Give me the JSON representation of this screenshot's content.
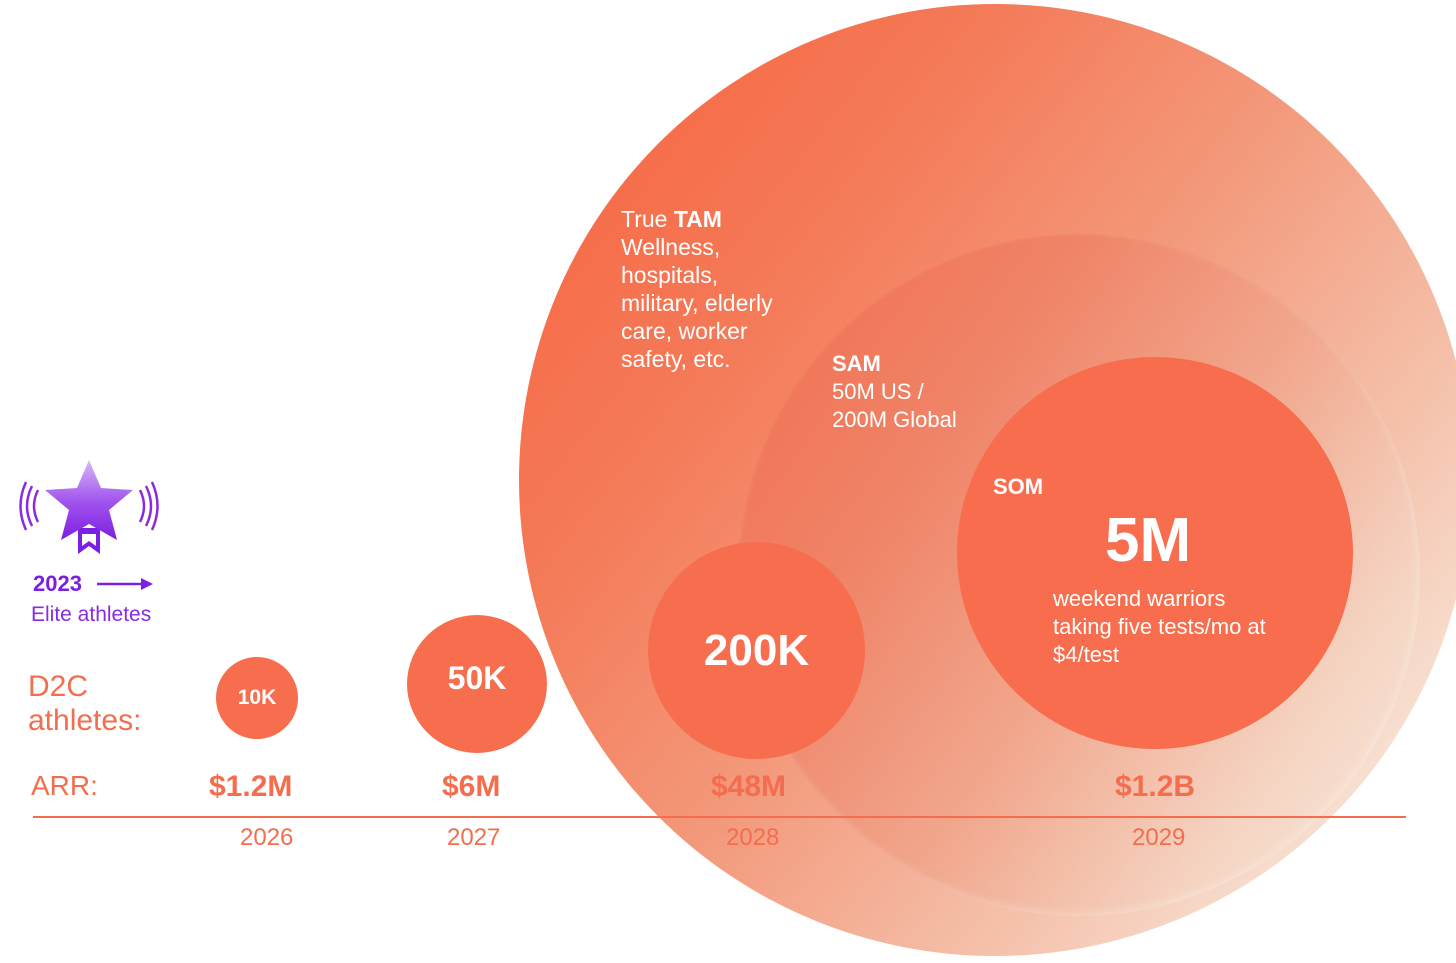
{
  "tam": {
    "prefix": "True ",
    "title": "TAM",
    "lines": [
      "Wellness,",
      "hospitals,",
      "military, elderly",
      "care, worker",
      "safety, etc."
    ]
  },
  "sam": {
    "title": "SAM",
    "lines": [
      "50M US /",
      "200M Global"
    ]
  },
  "som": {
    "title": "SOM",
    "value": "5M",
    "lines": [
      "weekend warriors",
      "taking five tests/mo at",
      "$4/test"
    ]
  },
  "badge": {
    "year": "2023",
    "label": "Elite athletes"
  },
  "row_labels": {
    "d2c_line1": "D2C",
    "d2c_line2": "athletes:",
    "arr": "ARR:"
  },
  "milestones": [
    {
      "year": "2026",
      "athletes": "10K",
      "arr": "$1.2M"
    },
    {
      "year": "2027",
      "athletes": "50K",
      "arr": "$6M"
    },
    {
      "year": "2028",
      "athletes": "200K",
      "arr": "$48M"
    },
    {
      "year": "2029",
      "athletes": "5M",
      "arr": "$1.2B"
    }
  ],
  "colors": {
    "accent": "#f36d4e",
    "badge": "#7b1fe0"
  }
}
